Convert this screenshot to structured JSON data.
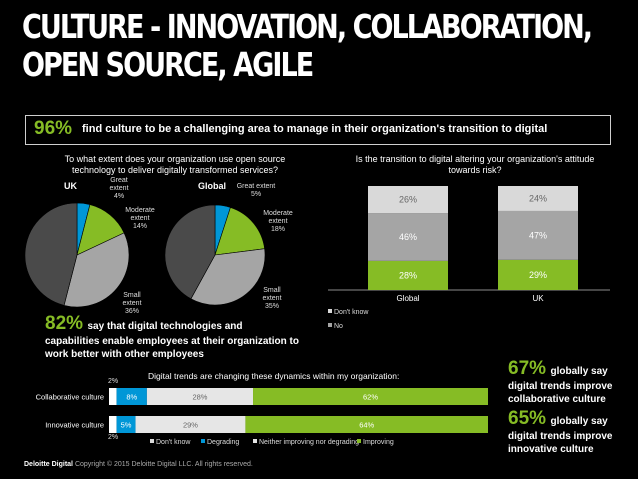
{
  "header": {
    "title_line1": "CULTURE - INNOVATION, COLLABORATION,",
    "title_line2": "OPEN SOURCE, AGILE"
  },
  "banner": {
    "stat": "96%",
    "text": "find culture to be a challenging area to manage in their organization's transition to digital"
  },
  "open_source": {
    "question": "To what extent does your organization use open source technology to deliver digitally transformed services?",
    "uk": {
      "label": "UK",
      "great": [
        "Great",
        "extent",
        "4%"
      ],
      "moderate": [
        "Moderate",
        "extent",
        "14%"
      ],
      "small": [
        "Small",
        "extent",
        "36%"
      ]
    },
    "global": {
      "label": "Global",
      "great": [
        "Great extent",
        "5%"
      ],
      "moderate": [
        "Moderate",
        "extent",
        "18%"
      ],
      "small": [
        "Small",
        "extent",
        "35%"
      ]
    }
  },
  "risk": {
    "question": "Is the transition to digital altering your organization's attitude towards risk?",
    "legend_dont_know": "Don't know",
    "legend_no": "No"
  },
  "stat82": {
    "stat": "82%",
    "line1": "say that digital technologies and",
    "line2": "capabilities enable employees at their organization to",
    "line3": "work better with other employees"
  },
  "trends": {
    "title": "Digital trends are changing these dynamics within my organization:",
    "legend": [
      "Don't know",
      "Degrading",
      "Neither improving nor degrading",
      "Improving"
    ]
  },
  "side_stats": [
    {
      "stat": "67%",
      "lead": "globally say",
      "line1": "digital trends improve",
      "line2": "collaborative culture"
    },
    {
      "stat": "65%",
      "lead": "globally say",
      "line1": "digital trends improve",
      "line2": "innovative culture"
    }
  ],
  "footer": {
    "brand": "Deloitte Digital",
    "copyright": "Copyright © 2015 Deloitte Digital LLC. All rights reserved."
  },
  "colors": {
    "blue": "#0097d7",
    "green": "#86bc25",
    "dark_gray": "#4a4a4a",
    "mid_gray": "#a5a5a5",
    "light_gray": "#e6e6e6",
    "pale_gray": "#d9d9d9",
    "white": "#ffffff"
  },
  "chart_data": [
    {
      "type": "pie",
      "title": "UK",
      "labels": [
        "Great extent",
        "Moderate extent",
        "Small extent",
        ""
      ],
      "values": [
        4,
        14,
        36,
        46
      ]
    },
    {
      "type": "pie",
      "title": "Global",
      "labels": [
        "Great extent",
        "Moderate extent",
        "Small extent",
        ""
      ],
      "values": [
        5,
        18,
        35,
        42
      ]
    },
    {
      "type": "bar",
      "stacked": true,
      "categories": [
        "Global",
        "UK"
      ],
      "series": [
        {
          "name": "",
          "values": [
            28,
            29
          ],
          "labels": [
            "28%",
            "29%"
          ]
        },
        {
          "name": "No",
          "values": [
            46,
            47
          ],
          "labels": [
            "46%",
            "47%"
          ]
        },
        {
          "name": "Don't know",
          "values": [
            26,
            24
          ],
          "labels": [
            "26%",
            "24%"
          ]
        }
      ],
      "ylim": [
        0,
        100
      ],
      "legend": "bottom-left"
    },
    {
      "type": "bar",
      "orientation": "horizontal",
      "stacked": true,
      "categories": [
        "Collaborative culture",
        "Innovative culture"
      ],
      "series": [
        {
          "name": "Don't know",
          "values": [
            2,
            2
          ],
          "labels": [
            "2%",
            "2%"
          ]
        },
        {
          "name": "Degrading",
          "values": [
            8,
            5
          ],
          "labels": [
            "8%",
            "5%"
          ]
        },
        {
          "name": "Neither improving nor degrading",
          "values": [
            28,
            29
          ],
          "labels": [
            "28%",
            "29%"
          ]
        },
        {
          "name": "Improving",
          "values": [
            62,
            64
          ],
          "labels": [
            "62%",
            "64%"
          ]
        }
      ],
      "xlim": [
        0,
        100
      ],
      "legend": "bottom"
    }
  ]
}
